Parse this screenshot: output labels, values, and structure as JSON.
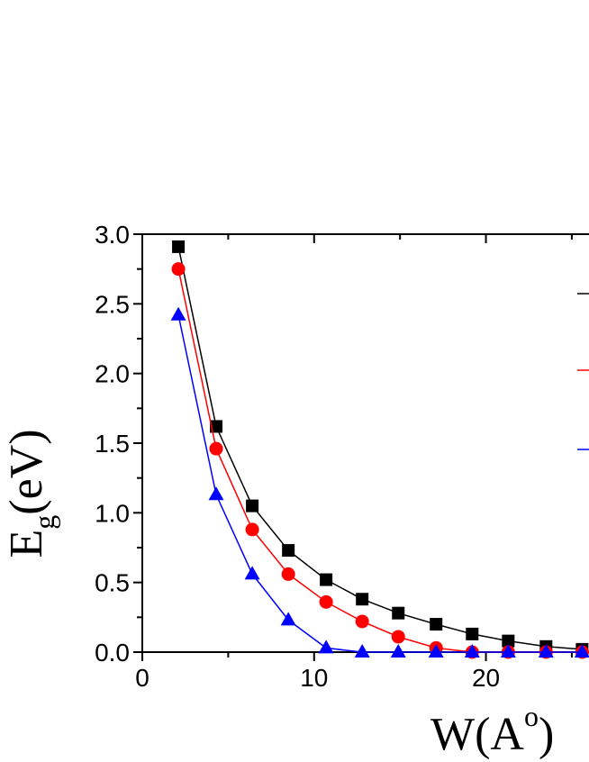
{
  "chart_data": {
    "type": "line",
    "xlabel": "W(A",
    "xlabel_sup": "o",
    "xlabel_close": ")",
    "ylabel": "E",
    "ylabel_sub": "g",
    "ylabel_unit": "(eV)",
    "xlim": [
      0,
      26
    ],
    "ylim": [
      0.0,
      3.0
    ],
    "x_ticks": [
      "0",
      "10",
      "20"
    ],
    "y_ticks": [
      "0.0",
      "0.5",
      "1.0",
      "1.5",
      "2.0",
      "2.5",
      "3.0"
    ],
    "grid": false,
    "legend_position": "right",
    "series": [
      {
        "marker": "square",
        "color": "#000000",
        "x": [
          2.1,
          4.3,
          6.4,
          8.5,
          10.7,
          12.8,
          14.9,
          17.1,
          19.2,
          21.3,
          23.5,
          25.6
        ],
        "y": [
          2.91,
          1.62,
          1.05,
          0.73,
          0.52,
          0.38,
          0.28,
          0.2,
          0.13,
          0.08,
          0.04,
          0.02
        ]
      },
      {
        "marker": "circle",
        "color": "#ff0000",
        "x": [
          2.1,
          4.3,
          6.4,
          8.5,
          10.7,
          12.8,
          14.9,
          17.1,
          19.2,
          21.3,
          23.5,
          25.6
        ],
        "y": [
          2.75,
          1.46,
          0.88,
          0.56,
          0.36,
          0.22,
          0.11,
          0.03,
          0.0,
          0.0,
          0.0,
          0.0
        ]
      },
      {
        "marker": "triangle",
        "color": "#0000ff",
        "x": [
          2.1,
          4.3,
          6.4,
          8.5,
          10.7,
          12.8,
          14.9,
          17.1,
          19.2,
          21.3,
          23.5,
          25.6
        ],
        "y": [
          2.42,
          1.13,
          0.56,
          0.23,
          0.03,
          0.0,
          0.0,
          0.0,
          0.0,
          0.0,
          0.0,
          0.0
        ]
      }
    ]
  }
}
